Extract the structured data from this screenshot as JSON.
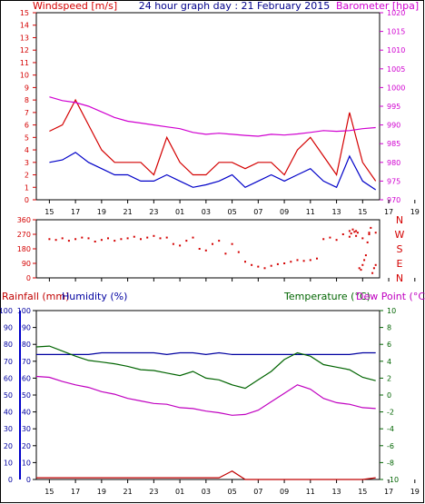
{
  "title": "24 hour graph day : 21 February 2015",
  "colors": {
    "wind": "#d40000",
    "gust_series": "#d40000",
    "avg_series": "#0000c8",
    "baro": "#d000d0",
    "direction": "#d40000",
    "rain": "#c00000",
    "humidity": "#0000a0",
    "temperature": "#006400",
    "dewpoint": "#c000c0"
  },
  "chart_data": [
    {
      "type": "line",
      "panel": "wind_baro",
      "left_label": "Windspeed [m/s]",
      "right_label": "Barometer [hpa]",
      "ylim_left": [
        0,
        15
      ],
      "ylim_right": [
        970,
        1020
      ],
      "left_ticks": [
        "0",
        "1",
        "2",
        "3",
        "4",
        "5",
        "6",
        "7",
        "8",
        "9",
        "10",
        "11",
        "12",
        "13",
        "14",
        "15"
      ],
      "right_ticks": [
        "970",
        "975",
        "980",
        "985",
        "990",
        "995",
        "1000",
        "1005",
        "1010",
        "1015",
        "1020"
      ],
      "x_ticks": [
        "15",
        "17",
        "19",
        "21",
        "23",
        "01",
        "03",
        "05",
        "07",
        "09",
        "11",
        "13",
        "15",
        "17",
        "19",
        "21",
        "23"
      ],
      "x_hours": [
        15,
        16,
        17,
        18,
        19,
        20,
        21,
        22,
        23,
        24,
        25,
        26,
        27,
        28,
        29,
        30,
        31,
        32,
        33,
        34,
        35,
        36,
        37,
        38,
        39,
        40
      ],
      "series": [
        {
          "name": "gust",
          "values": [
            5.5,
            6,
            8,
            6,
            4,
            3,
            3,
            3,
            2,
            5,
            3,
            2,
            2,
            3,
            3,
            2.5,
            3,
            3,
            2,
            4,
            5,
            3.5,
            2,
            7,
            3,
            1.5
          ]
        },
        {
          "name": "average",
          "values": [
            3,
            3.2,
            3.8,
            3,
            2.5,
            2,
            2,
            1.5,
            1.5,
            2,
            1.5,
            1,
            1.2,
            1.5,
            2,
            1,
            1.5,
            2,
            1.5,
            2,
            2.5,
            1.5,
            1,
            3.5,
            1.5,
            0.8
          ]
        },
        {
          "name": "barometer",
          "values": [
            997.5,
            996.5,
            996,
            995,
            993.5,
            992,
            991,
            990.5,
            990,
            989.5,
            989,
            988,
            987.5,
            987.8,
            987.5,
            987.2,
            987,
            987.5,
            987.3,
            987.6,
            988,
            988.5,
            988.3,
            988.5,
            989,
            989.3
          ]
        }
      ]
    },
    {
      "type": "scatter",
      "panel": "direction",
      "ylim": [
        0,
        360
      ],
      "y_ticks": [
        "0",
        "90",
        "180",
        "270",
        "360"
      ],
      "compass": [
        "N",
        "W",
        "S",
        "E",
        "N"
      ],
      "x_ticks": [
        "15",
        "17",
        "19",
        "21",
        "23",
        "01",
        "03",
        "05",
        "07",
        "09",
        "11",
        "13",
        "15",
        "17",
        "19",
        "21",
        "23"
      ],
      "points": [
        [
          15,
          240
        ],
        [
          15.5,
          235
        ],
        [
          16,
          245
        ],
        [
          16.5,
          230
        ],
        [
          17,
          240
        ],
        [
          17.5,
          250
        ],
        [
          18,
          245
        ],
        [
          18.5,
          225
        ],
        [
          19,
          235
        ],
        [
          19.5,
          245
        ],
        [
          20,
          230
        ],
        [
          20.5,
          240
        ],
        [
          21,
          245
        ],
        [
          21.5,
          255
        ],
        [
          22,
          240
        ],
        [
          22.5,
          250
        ],
        [
          23,
          260
        ],
        [
          23.5,
          245
        ],
        [
          24,
          250
        ],
        [
          24.5,
          210
        ],
        [
          25,
          200
        ],
        [
          25.5,
          230
        ],
        [
          26,
          250
        ],
        [
          26.5,
          180
        ],
        [
          27,
          170
        ],
        [
          27.5,
          210
        ],
        [
          28,
          230
        ],
        [
          28.5,
          150
        ],
        [
          29,
          210
        ],
        [
          29.5,
          160
        ],
        [
          30,
          100
        ],
        [
          30.5,
          80
        ],
        [
          31,
          70
        ],
        [
          31.5,
          60
        ],
        [
          32,
          75
        ],
        [
          32.5,
          85
        ],
        [
          33,
          90
        ],
        [
          33.5,
          100
        ],
        [
          34,
          110
        ],
        [
          34.5,
          105
        ],
        [
          35,
          110
        ],
        [
          35.5,
          120
        ],
        [
          36,
          240
        ],
        [
          36.5,
          250
        ],
        [
          37,
          235
        ],
        [
          37.5,
          270
        ],
        [
          38,
          255
        ],
        [
          38.5,
          260
        ],
        [
          39,
          245
        ],
        [
          39.5,
          270
        ],
        [
          40,
          280
        ],
        [
          40.5,
          290
        ],
        [
          41,
          275
        ],
        [
          41.5,
          300
        ],
        [
          42,
          285
        ],
        [
          42.5,
          290
        ],
        [
          43,
          280
        ],
        [
          43.5,
          60
        ],
        [
          44,
          50
        ],
        [
          44.5,
          80
        ],
        [
          45,
          110
        ],
        [
          45.5,
          140
        ],
        [
          46,
          220
        ],
        [
          46.5,
          280
        ],
        [
          47,
          310
        ],
        [
          47.5,
          30
        ],
        [
          48,
          60
        ],
        [
          48.5,
          80
        ]
      ]
    },
    {
      "type": "line",
      "panel": "temp_hum_rain",
      "left_label_rain": "Rainfall (mm)",
      "left_label_hum": "Humidity (%)",
      "right_label_temp": "Temperature (°C)",
      "right_label_dew": "Dew Point (°C)",
      "ylim_left": [
        0,
        100
      ],
      "ylim_right": [
        -10,
        10
      ],
      "rain_ticks": [
        "0",
        "10",
        "20",
        "30",
        "40",
        "50",
        "60",
        "70",
        "80",
        "90",
        "100"
      ],
      "hum_ticks": [
        "0",
        "10",
        "20",
        "30",
        "40",
        "50",
        "60",
        "70",
        "80",
        "90",
        "100"
      ],
      "temp_ticks": [
        "-10",
        "-8",
        "-6",
        "-4",
        "-2",
        "0",
        "2",
        "4",
        "6",
        "8",
        "10"
      ],
      "x_ticks": [
        "15",
        "17",
        "19",
        "21",
        "23",
        "01",
        "03",
        "05",
        "07",
        "09",
        "11",
        "13",
        "15",
        "17",
        "19",
        "21",
        "23"
      ],
      "x_hours": [
        14,
        15,
        16,
        17,
        18,
        19,
        20,
        21,
        22,
        23,
        24,
        25,
        26,
        27,
        28,
        29,
        30,
        31,
        32,
        33,
        34,
        35,
        36,
        37,
        38,
        39,
        40
      ],
      "series": [
        {
          "name": "temperature",
          "values": [
            5.7,
            5.8,
            5.2,
            4.6,
            4.1,
            3.9,
            3.7,
            3.4,
            3.0,
            2.9,
            2.6,
            2.3,
            2.8,
            2.0,
            1.8,
            1.2,
            0.8,
            1.8,
            2.8,
            4.2,
            5.0,
            4.6,
            3.6,
            3.3,
            3.0,
            2.1,
            1.7
          ]
        },
        {
          "name": "humidity",
          "values": [
            74,
            74,
            74,
            74,
            74,
            75,
            75,
            75,
            75,
            75,
            74,
            75,
            75,
            74,
            75,
            74,
            74,
            74,
            74,
            74,
            74,
            74,
            74,
            74,
            74,
            75,
            75
          ]
        },
        {
          "name": "dewpoint",
          "values": [
            2.2,
            2.1,
            1.6,
            1.2,
            0.9,
            0.4,
            0.1,
            -0.4,
            -0.7,
            -1.0,
            -1.1,
            -1.5,
            -1.6,
            -1.9,
            -2.1,
            -2.4,
            -2.3,
            -1.8,
            -0.8,
            0.2,
            1.2,
            0.7,
            -0.4,
            -0.9,
            -1.1,
            -1.5,
            -1.6
          ]
        },
        {
          "name": "rainfall",
          "values": [
            1,
            1,
            1,
            1,
            1,
            1,
            1,
            1,
            1,
            1,
            1,
            1,
            1,
            1,
            1,
            5,
            0,
            0,
            0,
            0,
            0,
            0,
            0,
            0,
            0,
            0,
            1
          ]
        }
      ]
    }
  ]
}
